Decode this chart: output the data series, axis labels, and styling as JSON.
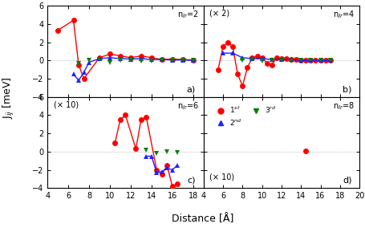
{
  "xlabel": "Distance [Å]",
  "ylim": [
    -4,
    6
  ],
  "xlim_a": [
    4,
    19
  ],
  "xlim_b": [
    4,
    20
  ],
  "panels": {
    "a": {
      "label": "a)",
      "annot_nir": "n$_{Ir}$=2",
      "annot_scale": null,
      "red_x": [
        5.0,
        6.5,
        7.0,
        7.5,
        9.0,
        10.0,
        11.0,
        12.0,
        13.0,
        14.0,
        15.0,
        16.0,
        17.0,
        18.0
      ],
      "red_y": [
        3.3,
        4.4,
        -0.5,
        -2.0,
        0.3,
        0.7,
        0.5,
        0.3,
        0.5,
        0.3,
        0.1,
        0.15,
        0.1,
        0.05
      ],
      "blue_x": [
        6.5,
        7.0,
        7.5,
        8.0,
        9.0,
        10.0,
        11.0,
        12.0,
        13.0,
        14.0,
        15.0,
        16.0,
        17.0,
        18.0
      ],
      "blue_y": [
        -1.5,
        -2.2,
        -1.3,
        -0.2,
        0.2,
        0.3,
        0.2,
        0.15,
        0.2,
        0.1,
        0.1,
        0.05,
        0.05,
        0.0
      ],
      "green_x": [
        7.0,
        8.0,
        9.0,
        10.0,
        11.0,
        12.0,
        13.0,
        14.0,
        15.0,
        16.0,
        17.0,
        18.0
      ],
      "green_y": [
        -0.3,
        0.0,
        0.1,
        -0.2,
        0.0,
        0.0,
        -0.1,
        -0.1,
        0.0,
        0.0,
        0.0,
        0.0
      ],
      "red_line": true,
      "blue_line": true
    },
    "b": {
      "label": "b)",
      "annot_nir": "n$_{Ir}$=4",
      "annot_scale": "(× 2)",
      "red_x": [
        5.5,
        6.0,
        6.5,
        7.0,
        7.5,
        8.0,
        8.5,
        9.0,
        9.5,
        10.0,
        10.5,
        11.0,
        11.5,
        12.0,
        12.5,
        13.0,
        13.5,
        14.0,
        14.5,
        15.0,
        15.5,
        16.0,
        16.5,
        17.0
      ],
      "red_y": [
        -1.0,
        1.5,
        2.0,
        1.5,
        -1.5,
        -2.8,
        -0.8,
        0.3,
        0.5,
        0.3,
        -0.3,
        -0.5,
        0.3,
        0.2,
        0.2,
        0.1,
        0.1,
        0.0,
        0.0,
        0.0,
        0.0,
        0.0,
        0.0,
        0.0
      ],
      "blue_x": [
        6.0,
        7.0,
        8.0,
        9.0,
        10.0,
        11.0,
        12.0,
        13.0,
        14.0,
        15.0,
        16.0,
        17.0
      ],
      "blue_y": [
        0.8,
        0.8,
        0.3,
        0.2,
        0.2,
        0.1,
        0.1,
        0.1,
        0.0,
        0.0,
        0.0,
        0.0
      ],
      "green_x": [
        8.0,
        9.0,
        10.0,
        11.0,
        12.0,
        13.0,
        14.0,
        15.0,
        16.0,
        17.0
      ],
      "green_y": [
        0.0,
        0.1,
        -0.1,
        0.0,
        0.0,
        -0.1,
        0.0,
        0.0,
        0.0,
        0.0
      ],
      "red_line": true,
      "blue_line": true
    },
    "c": {
      "label": "c)",
      "annot_nir": "n$_{Ir}$=6",
      "annot_scale": "(× 10)",
      "red_x": [
        10.5,
        11.0,
        11.5,
        12.5,
        13.0,
        13.5,
        14.5,
        15.0,
        15.5,
        16.0,
        16.5
      ],
      "red_y": [
        1.0,
        3.5,
        4.0,
        0.3,
        3.5,
        3.8,
        -2.0,
        -2.5,
        -1.5,
        -3.8,
        -3.5
      ],
      "blue_x": [
        13.5,
        14.0,
        14.5,
        15.0,
        15.5,
        16.0,
        16.5
      ],
      "blue_y": [
        -0.5,
        -0.5,
        -2.3,
        -2.2,
        -1.8,
        -2.0,
        -1.5
      ],
      "green_x": [
        13.5,
        14.5,
        15.5,
        16.5
      ],
      "green_y": [
        0.2,
        -0.2,
        0.0,
        -0.1
      ],
      "red_line": true,
      "blue_line": true
    },
    "d": {
      "label": "d)",
      "annot_nir": "n$_{Ir}$=8",
      "annot_scale": "(× 10)",
      "red_x": [
        14.5
      ],
      "red_y": [
        0.08
      ],
      "blue_x": [],
      "blue_y": [],
      "green_x": [],
      "green_y": [],
      "red_line": false,
      "blue_line": false
    }
  },
  "red_color": "#ff0000",
  "blue_color": "#2020ff",
  "green_color": "#008000",
  "markersize": 5,
  "linewidth": 1.0
}
